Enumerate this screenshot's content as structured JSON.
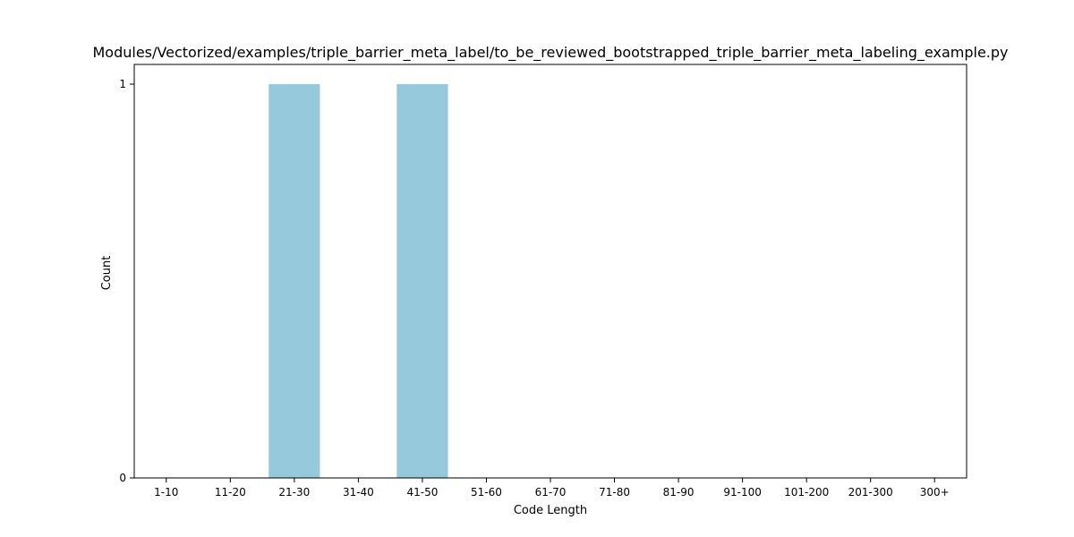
{
  "chart_data": {
    "type": "bar",
    "title": "Modules/Vectorized/examples/triple_barrier_meta_label/to_be_reviewed_bootstrapped_triple_barrier_meta_labeling_example.py",
    "xlabel": "Code Length",
    "ylabel": "Count",
    "categories": [
      "1-10",
      "11-20",
      "21-30",
      "31-40",
      "41-50",
      "51-60",
      "61-70",
      "71-80",
      "81-90",
      "91-100",
      "101-200",
      "201-300",
      "300+"
    ],
    "values": [
      0,
      0,
      1,
      0,
      1,
      0,
      0,
      0,
      0,
      0,
      0,
      0,
      0
    ],
    "yticks": [
      0,
      1
    ],
    "ylim": [
      0,
      1
    ],
    "bar_color": "#96c9dc",
    "grid": false,
    "legend": "none"
  }
}
